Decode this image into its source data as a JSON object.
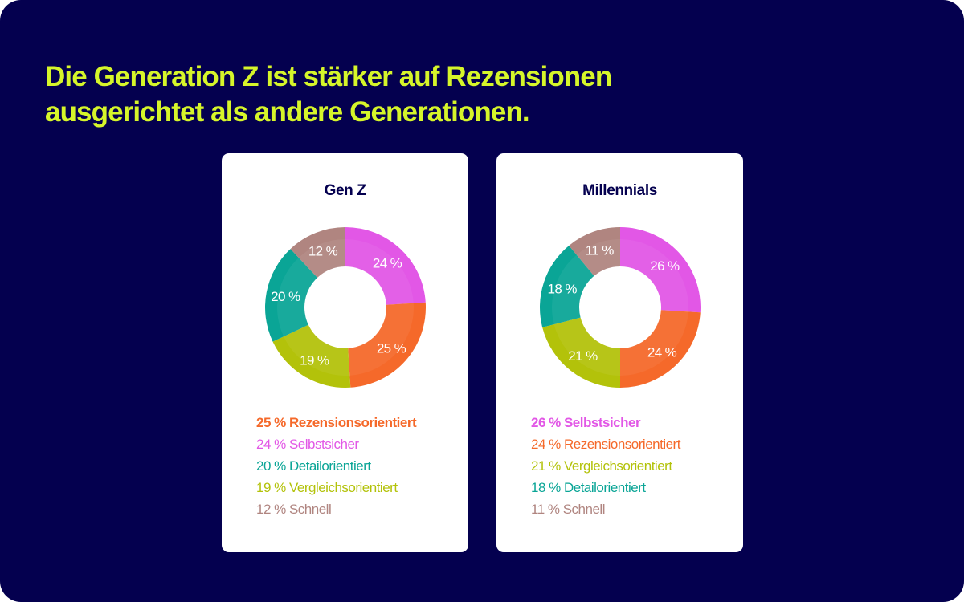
{
  "headline": {
    "line1": "Die Generation Z ist stärker auf Rezensionen",
    "line2": "ausgerichtet als andere Generationen."
  },
  "colors": {
    "background": "#04004f",
    "headline": "#d6f52a",
    "card": "#ffffff",
    "Rezensionsorientiert": "#f5692a",
    "Selbstsicher": "#e257e6",
    "Detailorientiert": "#0aa596",
    "Vergleichsorientiert": "#b3c20a",
    "Schnell": "#b08580"
  },
  "chart_data": [
    {
      "type": "pie",
      "variant": "donut",
      "title": "Gen Z",
      "slices": [
        {
          "label": "Selbstsicher",
          "value": 24,
          "display": "24 %"
        },
        {
          "label": "Rezensionsorientiert",
          "value": 25,
          "display": "25 %"
        },
        {
          "label": "Vergleichsorientiert",
          "value": 19,
          "display": "19 %"
        },
        {
          "label": "Detailorientiert",
          "value": 20,
          "display": "20 %"
        },
        {
          "label": "Schnell",
          "value": 12,
          "display": "12 %"
        }
      ],
      "legend": [
        {
          "text": "25 % Rezensionsorientiert",
          "category": "Rezensionsorientiert"
        },
        {
          "text": "24 % Selbstsicher",
          "category": "Selbstsicher"
        },
        {
          "text": "20 % Detailorientiert",
          "category": "Detailorientiert"
        },
        {
          "text": "19 % Vergleichsorientiert",
          "category": "Vergleichsorientiert"
        },
        {
          "text": "12 % Schnell",
          "category": "Schnell"
        }
      ],
      "legend_position": "bottom"
    },
    {
      "type": "pie",
      "variant": "donut",
      "title": "Millennials",
      "slices": [
        {
          "label": "Selbstsicher",
          "value": 26,
          "display": "26 %"
        },
        {
          "label": "Rezensionsorientiert",
          "value": 24,
          "display": "24 %"
        },
        {
          "label": "Vergleichsorientiert",
          "value": 21,
          "display": "21 %"
        },
        {
          "label": "Detailorientiert",
          "value": 18,
          "display": "18 %"
        },
        {
          "label": "Schnell",
          "value": 11,
          "display": "11 %"
        }
      ],
      "legend": [
        {
          "text": "26 % Selbstsicher",
          "category": "Selbstsicher"
        },
        {
          "text": "24 % Rezensionsorientiert",
          "category": "Rezensionsorientiert"
        },
        {
          "text": "21 % Vergleichsorientiert",
          "category": "Vergleichsorientiert"
        },
        {
          "text": "18 % Detailorientiert",
          "category": "Detailorientiert"
        },
        {
          "text": "11 % Schnell",
          "category": "Schnell"
        }
      ],
      "legend_position": "bottom"
    }
  ]
}
